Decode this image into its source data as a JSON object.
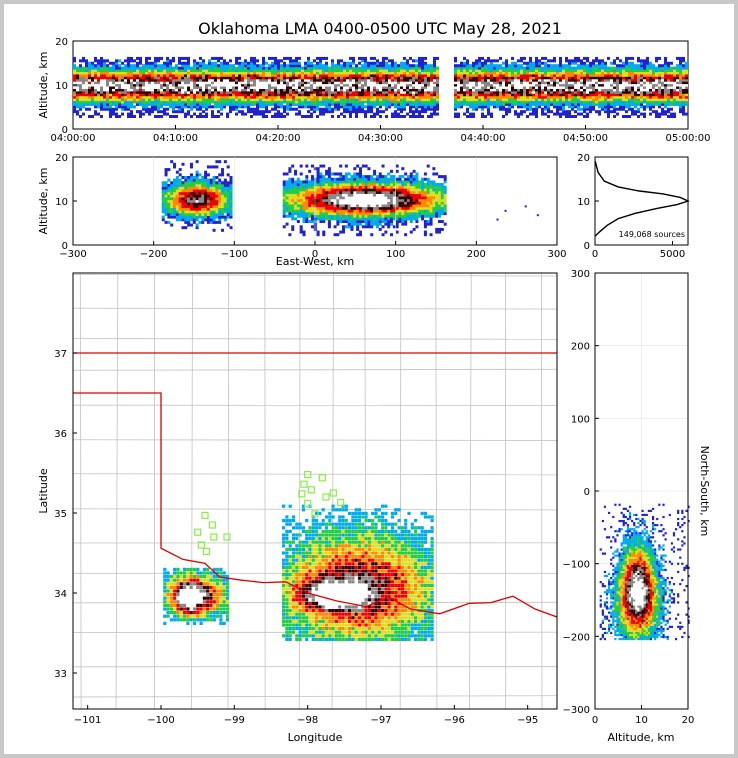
{
  "chart_data": {
    "type": "heatmap",
    "title": "Oklahoma LMA 0400-0500 UTC May 28, 2021",
    "panels": {
      "time_altitude": {
        "ylabel": "Altitude, km",
        "ylim": [
          0,
          20
        ],
        "yticks": [
          "0",
          "10",
          "20"
        ],
        "xticks": [
          "04:00:00",
          "04:10:00",
          "04:20:00",
          "04:30:00",
          "04:40:00",
          "04:50:00",
          "05:00:00"
        ],
        "gap_minutes": [
          35.5,
          37.0
        ],
        "band_low_km": 2.5,
        "band_high_km": 16,
        "core_km": [
          7.5,
          11.5
        ]
      },
      "ew_altitude": {
        "xlabel": "East-West, km",
        "ylabel": "Altitude, km",
        "xlim": [
          -300,
          300
        ],
        "ylim": [
          0,
          20
        ],
        "xticks": [
          "−300",
          "−200",
          "−100",
          "0",
          "100",
          "200",
          "300"
        ],
        "yticks": [
          "0",
          "10",
          "20"
        ],
        "cells": [
          {
            "x": [
              -190,
              -105
            ],
            "z": [
              3,
              19
            ],
            "peak_km": 10
          },
          {
            "x": [
              -40,
              160
            ],
            "z": [
              2,
              18
            ],
            "peak_km": 10
          }
        ]
      },
      "histogram": {
        "type": "line",
        "xlim": [
          0,
          6000
        ],
        "ylim": [
          0,
          20
        ],
        "xticks": [
          "0",
          "5000"
        ],
        "yticks": [
          "0",
          "10",
          "20"
        ],
        "annotation": "149,068 sources",
        "profile": [
          [
            0,
            2
          ],
          [
            300,
            3
          ],
          [
            800,
            4.5
          ],
          [
            1500,
            6
          ],
          [
            2600,
            7.2
          ],
          [
            4000,
            8.3
          ],
          [
            5300,
            9.2
          ],
          [
            6000,
            10
          ],
          [
            5500,
            10.8
          ],
          [
            4400,
            11.6
          ],
          [
            2800,
            12.3
          ],
          [
            1500,
            13.2
          ],
          [
            600,
            14.5
          ],
          [
            200,
            16.5
          ],
          [
            20,
            19
          ]
        ]
      },
      "map": {
        "xlabel": "Longitude",
        "ylabel": "Latitude",
        "xlim": [
          -101.2,
          -94.6
        ],
        "ylim": [
          32.55,
          38.0
        ],
        "xticks": [
          "−101",
          "−100",
          "−99",
          "−98",
          "−97",
          "−96",
          "−95"
        ],
        "yticks": [
          "33",
          "34",
          "35",
          "36",
          "37"
        ],
        "state_border_color": "#dd0000",
        "county_line_color": "#c8c8c8",
        "station_color": "#88ee44",
        "stations": [
          [
            -98.0,
            35.48
          ],
          [
            -97.8,
            35.44
          ],
          [
            -98.05,
            35.36
          ],
          [
            -98.08,
            35.24
          ],
          [
            -97.95,
            35.29
          ],
          [
            -97.75,
            35.2
          ],
          [
            -97.65,
            35.25
          ],
          [
            -97.55,
            35.13
          ],
          [
            -98.0,
            35.12
          ],
          [
            -97.9,
            34.99
          ],
          [
            -99.4,
            34.97
          ],
          [
            -99.3,
            34.85
          ],
          [
            -99.5,
            34.76
          ],
          [
            -99.28,
            34.7
          ],
          [
            -99.1,
            34.7
          ],
          [
            -99.45,
            34.6
          ],
          [
            -99.38,
            34.52
          ]
        ],
        "cells": [
          {
            "lon": [
              -99.97,
              -99.1
            ],
            "lat": [
              33.6,
              34.3
            ],
            "peak": [
              -99.65,
              33.92
            ]
          },
          {
            "lon": [
              -98.35,
              -96.3
            ],
            "lat": [
              33.4,
              35.1
            ],
            "peak": [
              -97.7,
              33.95
            ]
          }
        ]
      },
      "alt_ns": {
        "xlabel": "Altitude, km",
        "ylabel": "North-South, km",
        "xlim": [
          0,
          20
        ],
        "ylim": [
          -300,
          300
        ],
        "xticks": [
          "0",
          "10",
          "20"
        ],
        "yticks": [
          "−300",
          "−200",
          "−100",
          "0",
          "100",
          "200",
          "300"
        ],
        "cell": {
          "alt": [
            1,
            20
          ],
          "ns": [
            -205,
            -20
          ],
          "peak": [
            9,
            -140
          ]
        }
      }
    },
    "colormap": [
      "#2222cc",
      "#00aaee",
      "#22cc44",
      "#dddd22",
      "#ff8800",
      "#ee0000",
      "#330000",
      "#888888",
      "#ffffff"
    ]
  }
}
